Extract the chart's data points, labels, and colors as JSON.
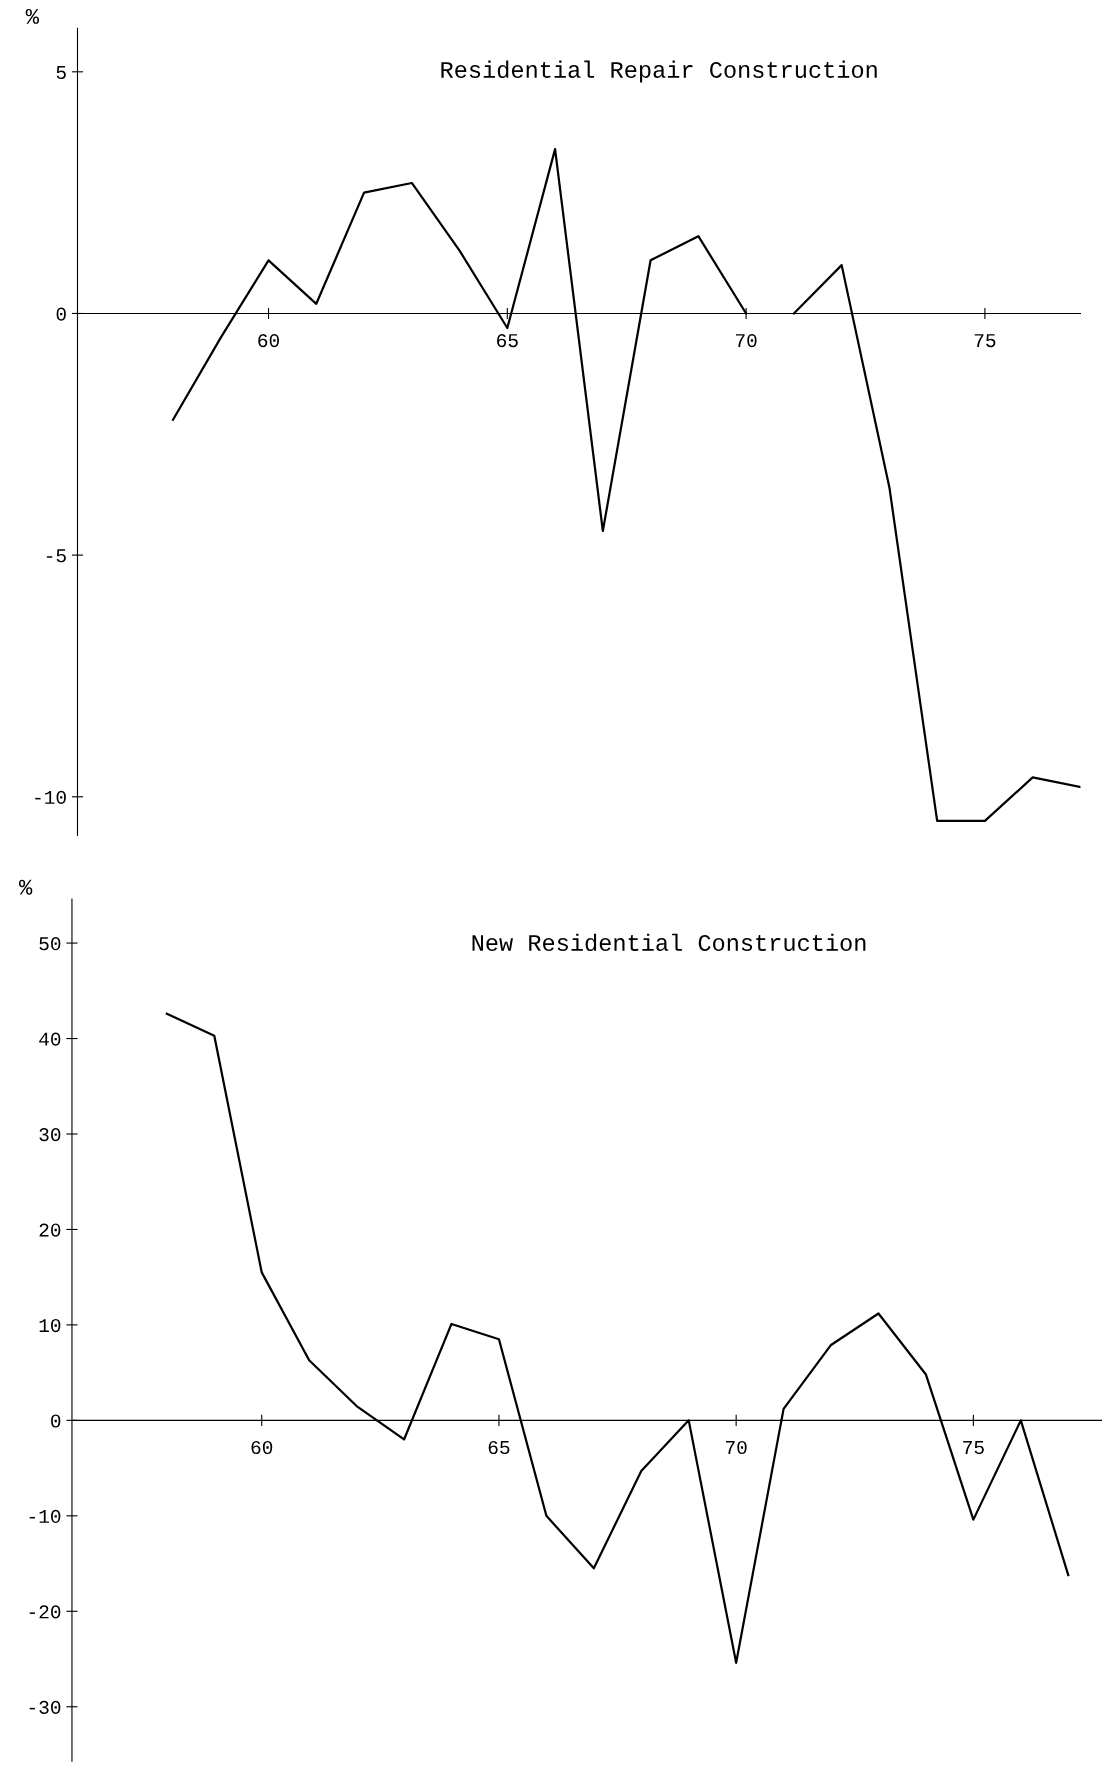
{
  "chart_data": [
    {
      "type": "line",
      "title": "Residential Repair Construction",
      "ylabel": "%",
      "x": [
        58,
        59,
        60,
        61,
        62,
        63,
        64,
        65,
        66,
        67,
        68,
        69,
        70,
        70.5,
        71,
        72,
        73,
        74,
        75,
        76,
        77
      ],
      "series": [
        {
          "color": "#000000",
          "values": [
            -2.2,
            -0.5,
            1.1,
            0.2,
            2.5,
            2.7,
            1.3,
            -0.3,
            3.4,
            -4.5,
            1.1,
            1.6,
            0,
            null,
            0,
            1.0,
            -3.6,
            -10.5,
            -10.5,
            -9.6,
            -9.8
          ]
        }
      ],
      "xlim": [
        56,
        77
      ],
      "ylim": [
        -10.8,
        5.9
      ],
      "xticks": [
        60,
        65,
        70,
        75
      ],
      "yticks": [
        5,
        0,
        -5,
        -10
      ],
      "grid": false,
      "legend": false,
      "marker": "none",
      "line_style": "solid"
    },
    {
      "type": "line",
      "title": "New Residential Construction",
      "ylabel": "%",
      "x": [
        58,
        59,
        60,
        61,
        62,
        63,
        64,
        65,
        66,
        67,
        68,
        69,
        70,
        71,
        72,
        73,
        74,
        75,
        76,
        77
      ],
      "series": [
        {
          "color": "#000000",
          "values": [
            42.6,
            40.3,
            15.5,
            6.3,
            1.5,
            -2.0,
            10.1,
            8.5,
            -10.0,
            -15.5,
            -5.3,
            0,
            -25.4,
            1.2,
            7.9,
            11.2,
            4.8,
            -10.4,
            0,
            -16.2
          ]
        }
      ],
      "xlim": [
        56,
        77.7
      ],
      "ylim": [
        -35.7,
        54.6
      ],
      "xticks": [
        60,
        65,
        70,
        75
      ],
      "yticks": [
        50,
        40,
        30,
        20,
        10,
        0,
        -10,
        -20,
        -30
      ],
      "grid": false,
      "legend": false,
      "marker": "none",
      "line_style": "solid"
    }
  ]
}
